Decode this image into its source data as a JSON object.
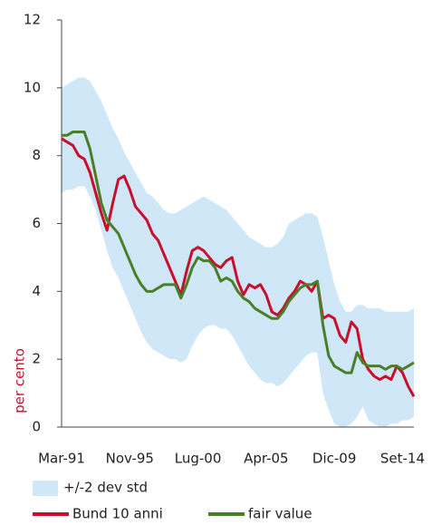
{
  "chart_data": {
    "type": "line",
    "ylabel": "per cento",
    "categories": [
      "Mar-91",
      null,
      null,
      null,
      null,
      null,
      null,
      null,
      null,
      null,
      null,
      null,
      "Nov-95",
      null,
      null,
      null,
      null,
      null,
      null,
      null,
      null,
      null,
      null,
      null,
      "Lug-00",
      null,
      null,
      null,
      null,
      null,
      null,
      null,
      null,
      null,
      null,
      null,
      "Apr-05",
      null,
      null,
      null,
      null,
      null,
      null,
      null,
      null,
      null,
      null,
      null,
      "Dic-09",
      null,
      null,
      null,
      null,
      null,
      null,
      null,
      null,
      null,
      null,
      null,
      "Set-14",
      null,
      null
    ],
    "ylim": [
      0,
      12
    ],
    "yticks": [
      0,
      2,
      4,
      6,
      8,
      10,
      12
    ],
    "band": {
      "name": "+/-2 dev std",
      "color": "#cfe7f6",
      "upper": [
        10.0,
        10.1,
        10.2,
        10.3,
        10.3,
        10.2,
        9.9,
        9.6,
        9.2,
        8.8,
        8.5,
        8.1,
        7.8,
        7.5,
        7.2,
        6.9,
        6.8,
        6.6,
        6.4,
        6.3,
        6.3,
        6.4,
        6.5,
        6.6,
        6.7,
        6.8,
        6.7,
        6.6,
        6.5,
        6.4,
        6.2,
        6.0,
        5.8,
        5.6,
        5.5,
        5.4,
        5.3,
        5.3,
        5.4,
        5.6,
        6.0,
        6.1,
        6.2,
        6.3,
        6.3,
        6.2,
        5.6,
        4.9,
        4.2,
        3.7,
        3.4,
        3.4,
        3.6,
        3.6,
        3.5,
        3.5,
        3.5,
        3.4,
        3.4,
        3.4,
        3.4,
        3.4,
        3.5
      ],
      "lower": [
        6.9,
        7.0,
        7.0,
        7.1,
        7.1,
        6.8,
        6.4,
        5.8,
        5.2,
        4.7,
        4.4,
        4.0,
        3.6,
        3.2,
        2.8,
        2.5,
        2.3,
        2.2,
        2.1,
        2.0,
        2.0,
        1.9,
        2.0,
        2.4,
        2.7,
        2.9,
        3.0,
        3.0,
        2.9,
        2.9,
        2.7,
        2.4,
        2.1,
        1.8,
        1.6,
        1.4,
        1.3,
        1.3,
        1.2,
        1.3,
        1.5,
        1.7,
        1.9,
        2.1,
        2.2,
        2.2,
        1.0,
        0.5,
        0.1,
        0.0,
        0.0,
        0.1,
        0.3,
        0.6,
        0.2,
        0.1,
        0.0,
        0.0,
        0.1,
        0.1,
        0.2,
        0.2,
        0.3
      ]
    },
    "series": [
      {
        "name": "Bund 10 anni",
        "color": "#c8102e",
        "values": [
          8.5,
          8.4,
          8.3,
          8.0,
          7.9,
          7.5,
          6.9,
          6.3,
          5.8,
          6.6,
          7.3,
          7.4,
          7.0,
          6.5,
          6.3,
          6.1,
          5.7,
          5.5,
          5.1,
          4.7,
          4.3,
          3.9,
          4.6,
          5.2,
          5.3,
          5.2,
          5.0,
          4.8,
          4.7,
          4.9,
          5.0,
          4.3,
          3.9,
          4.2,
          4.1,
          4.2,
          3.9,
          3.4,
          3.3,
          3.5,
          3.8,
          4.0,
          4.3,
          4.2,
          4.0,
          4.3,
          3.2,
          3.3,
          3.2,
          2.7,
          2.5,
          3.1,
          2.9,
          2.0,
          1.7,
          1.5,
          1.4,
          1.5,
          1.4,
          1.8,
          1.6,
          1.2,
          0.9
        ]
      },
      {
        "name": "fair value",
        "color": "#4a7f2a",
        "values": [
          8.6,
          8.6,
          8.7,
          8.7,
          8.7,
          8.2,
          7.4,
          6.6,
          6.1,
          5.9,
          5.7,
          5.3,
          4.9,
          4.5,
          4.2,
          4.0,
          4.0,
          4.1,
          4.2,
          4.2,
          4.2,
          3.8,
          4.2,
          4.7,
          5.0,
          4.9,
          4.9,
          4.7,
          4.3,
          4.4,
          4.3,
          4.0,
          3.8,
          3.7,
          3.5,
          3.4,
          3.3,
          3.2,
          3.2,
          3.4,
          3.7,
          3.9,
          4.1,
          4.2,
          4.2,
          4.3,
          3.0,
          2.1,
          1.8,
          1.7,
          1.6,
          1.6,
          2.2,
          1.9,
          1.8,
          1.8,
          1.8,
          1.7,
          1.8,
          1.8,
          1.7,
          1.8,
          1.9
        ]
      }
    ]
  }
}
